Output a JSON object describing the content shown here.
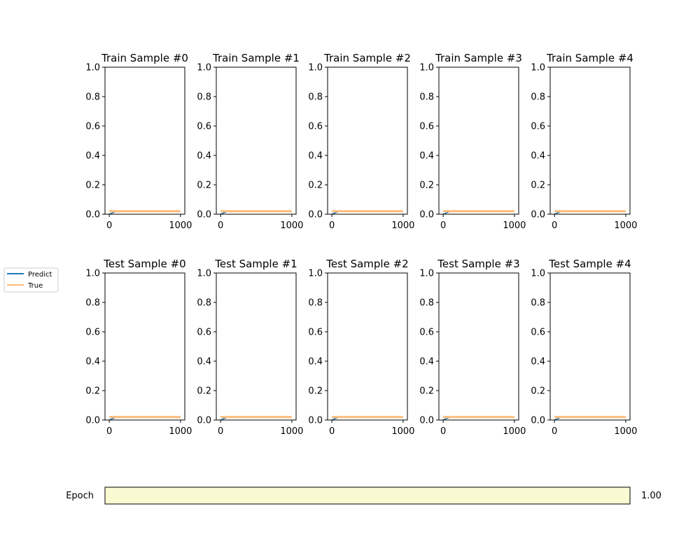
{
  "colors": {
    "predict": "#1f77b4",
    "true": "#ffbb78",
    "slider_fill": "#fafad2",
    "axis": "#000000"
  },
  "legend": {
    "placement": "left",
    "entries": [
      "Predict",
      "True"
    ]
  },
  "slider": {
    "label": "Epoch",
    "value": 1.0,
    "value_text": "1.00",
    "range": [
      0,
      1
    ]
  },
  "chart_data": [
    {
      "type": "line",
      "title": "Train Sample #0",
      "xlim": [
        -60,
        1060
      ],
      "ylim": [
        0.0,
        1.0
      ],
      "xticks": [
        "0",
        "1000"
      ],
      "yticks": [
        "0.0",
        "0.2",
        "0.4",
        "0.6",
        "0.8",
        "1.0"
      ],
      "series": [
        {
          "name": "Predict",
          "x": [
            0,
            100
          ],
          "y": [
            0.0,
            0.02
          ]
        },
        {
          "name": "True",
          "x": [
            0,
            1000
          ],
          "y": [
            0.02,
            0.02
          ]
        }
      ]
    },
    {
      "type": "line",
      "title": "Train Sample #1",
      "xlim": [
        -60,
        1060
      ],
      "ylim": [
        0.0,
        1.0
      ],
      "xticks": [
        "0",
        "1000"
      ],
      "yticks": [
        "0.0",
        "0.2",
        "0.4",
        "0.6",
        "0.8",
        "1.0"
      ],
      "series": [
        {
          "name": "Predict",
          "x": [
            0,
            100
          ],
          "y": [
            0.0,
            0.02
          ]
        },
        {
          "name": "True",
          "x": [
            0,
            1000
          ],
          "y": [
            0.02,
            0.02
          ]
        }
      ]
    },
    {
      "type": "line",
      "title": "Train Sample #2",
      "xlim": [
        -60,
        1060
      ],
      "ylim": [
        0.0,
        1.0
      ],
      "xticks": [
        "0",
        "1000"
      ],
      "yticks": [
        "0.0",
        "0.2",
        "0.4",
        "0.6",
        "0.8",
        "1.0"
      ],
      "series": [
        {
          "name": "Predict",
          "x": [
            0,
            100
          ],
          "y": [
            0.0,
            0.02
          ]
        },
        {
          "name": "True",
          "x": [
            0,
            1000
          ],
          "y": [
            0.02,
            0.02
          ]
        }
      ]
    },
    {
      "type": "line",
      "title": "Train Sample #3",
      "xlim": [
        -60,
        1060
      ],
      "ylim": [
        0.0,
        1.0
      ],
      "xticks": [
        "0",
        "1000"
      ],
      "yticks": [
        "0.0",
        "0.2",
        "0.4",
        "0.6",
        "0.8",
        "1.0"
      ],
      "series": [
        {
          "name": "Predict",
          "x": [
            0,
            100
          ],
          "y": [
            0.0,
            0.02
          ]
        },
        {
          "name": "True",
          "x": [
            0,
            1000
          ],
          "y": [
            0.02,
            0.02
          ]
        }
      ]
    },
    {
      "type": "line",
      "title": "Train Sample #4",
      "xlim": [
        -60,
        1060
      ],
      "ylim": [
        0.0,
        1.0
      ],
      "xticks": [
        "0",
        "1000"
      ],
      "yticks": [
        "0.0",
        "0.2",
        "0.4",
        "0.6",
        "0.8",
        "1.0"
      ],
      "series": [
        {
          "name": "Predict",
          "x": [
            0,
            100
          ],
          "y": [
            0.0,
            0.02
          ]
        },
        {
          "name": "True",
          "x": [
            0,
            1000
          ],
          "y": [
            0.02,
            0.02
          ]
        }
      ]
    },
    {
      "type": "line",
      "title": "Test Sample #0",
      "xlim": [
        -60,
        1060
      ],
      "ylim": [
        0.0,
        1.0
      ],
      "xticks": [
        "0",
        "1000"
      ],
      "yticks": [
        "0.0",
        "0.2",
        "0.4",
        "0.6",
        "0.8",
        "1.0"
      ],
      "series": [
        {
          "name": "Predict",
          "x": [
            0,
            100
          ],
          "y": [
            0.0,
            0.02
          ]
        },
        {
          "name": "True",
          "x": [
            0,
            1000
          ],
          "y": [
            0.02,
            0.02
          ]
        }
      ]
    },
    {
      "type": "line",
      "title": "Test Sample #1",
      "xlim": [
        -60,
        1060
      ],
      "ylim": [
        0.0,
        1.0
      ],
      "xticks": [
        "0",
        "1000"
      ],
      "yticks": [
        "0.0",
        "0.2",
        "0.4",
        "0.6",
        "0.8",
        "1.0"
      ],
      "series": [
        {
          "name": "Predict",
          "x": [
            0,
            100
          ],
          "y": [
            0.0,
            0.02
          ]
        },
        {
          "name": "True",
          "x": [
            0,
            1000
          ],
          "y": [
            0.02,
            0.02
          ]
        }
      ]
    },
    {
      "type": "line",
      "title": "Test Sample #2",
      "xlim": [
        -60,
        1060
      ],
      "ylim": [
        0.0,
        1.0
      ],
      "xticks": [
        "0",
        "1000"
      ],
      "yticks": [
        "0.0",
        "0.2",
        "0.4",
        "0.6",
        "0.8",
        "1.0"
      ],
      "series": [
        {
          "name": "Predict",
          "x": [
            0,
            100
          ],
          "y": [
            0.0,
            0.02
          ]
        },
        {
          "name": "True",
          "x": [
            0,
            1000
          ],
          "y": [
            0.02,
            0.02
          ]
        }
      ]
    },
    {
      "type": "line",
      "title": "Test Sample #3",
      "xlim": [
        -60,
        1060
      ],
      "ylim": [
        0.0,
        1.0
      ],
      "xticks": [
        "0",
        "1000"
      ],
      "yticks": [
        "0.0",
        "0.2",
        "0.4",
        "0.6",
        "0.8",
        "1.0"
      ],
      "series": [
        {
          "name": "Predict",
          "x": [
            0,
            100
          ],
          "y": [
            0.0,
            0.02
          ]
        },
        {
          "name": "True",
          "x": [
            0,
            1000
          ],
          "y": [
            0.02,
            0.02
          ]
        }
      ]
    },
    {
      "type": "line",
      "title": "Test Sample #4",
      "xlim": [
        -60,
        1060
      ],
      "ylim": [
        0.0,
        1.0
      ],
      "xticks": [
        "0",
        "1000"
      ],
      "yticks": [
        "0.0",
        "0.2",
        "0.4",
        "0.6",
        "0.8",
        "1.0"
      ],
      "series": [
        {
          "name": "Predict",
          "x": [
            0,
            100
          ],
          "y": [
            0.0,
            0.02
          ]
        },
        {
          "name": "True",
          "x": [
            0,
            1000
          ],
          "y": [
            0.02,
            0.02
          ]
        }
      ]
    }
  ]
}
